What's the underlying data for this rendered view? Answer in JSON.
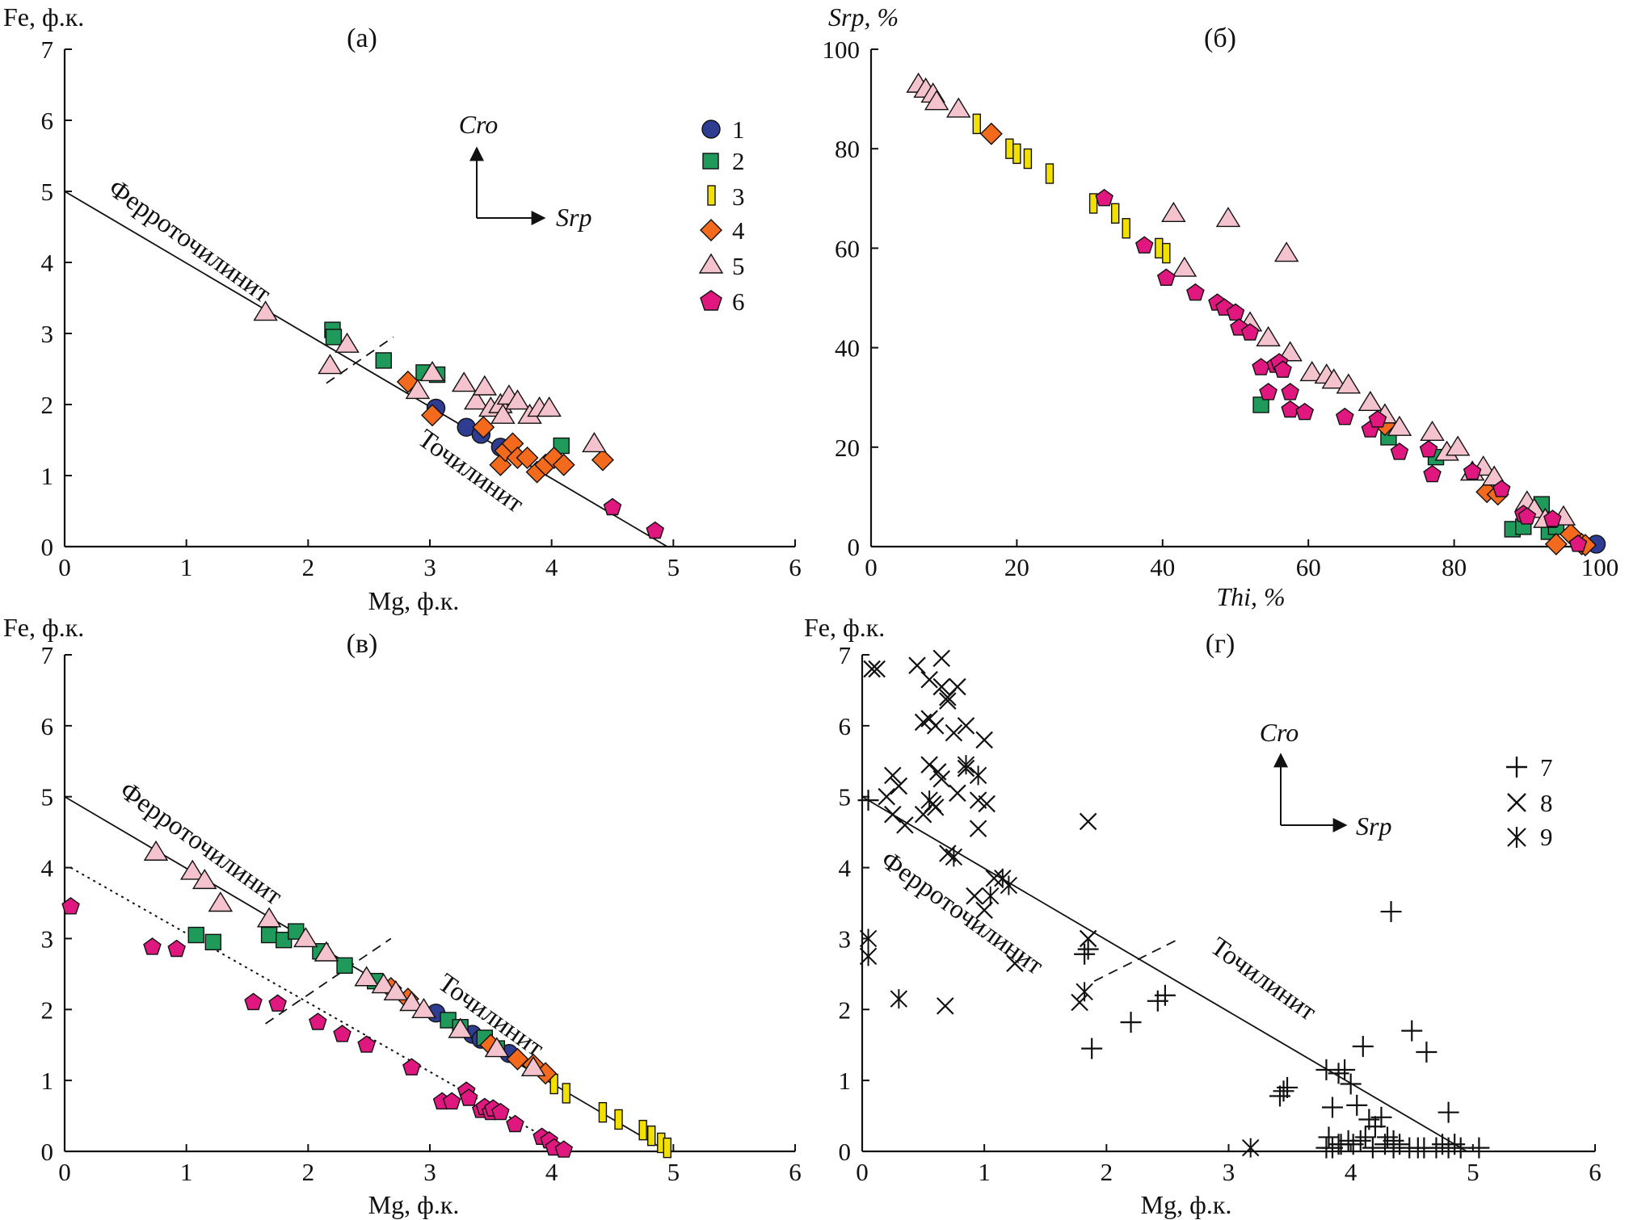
{
  "colors": {
    "1": "#2e3d92",
    "2": "#1f9a5a",
    "3": "#f2e100",
    "4": "#f36a1c",
    "5": "#f4c3cd",
    "6": "#e0177e",
    "axis": "#111111"
  },
  "icons": {
    "direction_arrows": "arrow-up-right-icon"
  },
  "chart_data": [
    {
      "id": "a",
      "type": "scatter",
      "panel_label": "(а)",
      "xlabel": "Mg, ф.к.",
      "ylabel": "Fe, ф.к.",
      "xlim": [
        0,
        6
      ],
      "ylim": [
        0,
        7
      ],
      "xticks": [
        "0",
        "1",
        "2",
        "3",
        "4",
        "5",
        "6"
      ],
      "yticks": [
        "0",
        "1",
        "2",
        "3",
        "4",
        "5",
        "6",
        "7"
      ],
      "grid": false,
      "legend": {
        "placement": "top-right",
        "items": [
          {
            "key": "1",
            "label": "1",
            "marker": "circle"
          },
          {
            "key": "2",
            "label": "2",
            "marker": "square"
          },
          {
            "key": "3",
            "label": "3",
            "marker": "bar"
          },
          {
            "key": "4",
            "label": "4",
            "marker": "diamond"
          },
          {
            "key": "5",
            "label": "5",
            "marker": "triangle"
          },
          {
            "key": "6",
            "label": "6",
            "marker": "pentagon"
          }
        ]
      },
      "arrow_labels": {
        "up": "Cro",
        "right": "Srp"
      },
      "region_labels": {
        "ferro": "Ферроточилинит",
        "toch": "Точилинит"
      },
      "lines": [
        {
          "style": "solid",
          "x": [
            0,
            4.95
          ],
          "y": [
            5,
            0
          ]
        },
        {
          "style": "dashed",
          "x": [
            2.15,
            2.7
          ],
          "y": [
            2.3,
            2.95
          ]
        }
      ],
      "series": [
        {
          "key": "1",
          "marker": "circle",
          "x": [
            3.05,
            3.3,
            3.42,
            3.58
          ],
          "y": [
            1.95,
            1.68,
            1.58,
            1.4
          ]
        },
        {
          "key": "2",
          "marker": "square",
          "x": [
            2.2,
            2.21,
            2.62,
            2.95,
            3.06,
            4.08
          ],
          "y": [
            3.05,
            2.95,
            2.62,
            2.45,
            2.42,
            1.42
          ]
        },
        {
          "key": "4",
          "marker": "diamond",
          "x": [
            2.82,
            3.02,
            3.44,
            3.58,
            3.62,
            3.68,
            3.72,
            3.8,
            3.88,
            3.95,
            4.02,
            4.1,
            4.42
          ],
          "y": [
            2.32,
            1.85,
            1.68,
            1.15,
            1.35,
            1.45,
            1.25,
            1.25,
            1.05,
            1.15,
            1.25,
            1.15,
            1.22
          ]
        },
        {
          "key": "5",
          "marker": "triangle",
          "x": [
            1.65,
            2.18,
            2.32,
            2.9,
            3.02,
            3.28,
            3.38,
            3.45,
            3.5,
            3.58,
            3.6,
            3.65,
            3.72,
            3.82,
            3.9,
            3.98,
            4.35
          ],
          "y": [
            3.3,
            2.55,
            2.85,
            2.2,
            2.45,
            2.3,
            2.05,
            2.25,
            1.95,
            2.0,
            1.85,
            2.12,
            2.05,
            1.85,
            1.95,
            1.95,
            1.45
          ]
        },
        {
          "key": "6",
          "marker": "pentagon",
          "x": [
            4.5,
            4.85
          ],
          "y": [
            0.55,
            0.22
          ]
        }
      ]
    },
    {
      "id": "b",
      "type": "scatter",
      "panel_label": "(б)",
      "xlabel": "Thi, %",
      "ylabel": "Srp, %",
      "xlim": [
        0,
        100
      ],
      "ylim": [
        0,
        100
      ],
      "xticks": [
        "0",
        "20",
        "40",
        "60",
        "80",
        "100"
      ],
      "yticks": [
        "0",
        "20",
        "40",
        "60",
        "80",
        "100"
      ],
      "grid": false,
      "series": [
        {
          "key": "1",
          "marker": "circle",
          "x": [
            99.5
          ],
          "y": [
            0.5
          ]
        },
        {
          "key": "2",
          "marker": "square",
          "x": [
            53.5,
            71,
            77.5,
            88,
            89.5,
            92,
            93,
            94
          ],
          "y": [
            28.5,
            22,
            18,
            3.5,
            4,
            8.5,
            3,
            4
          ]
        },
        {
          "key": "3",
          "marker": "bar",
          "x": [
            14.5,
            19,
            20,
            21.5,
            24.5,
            30.5,
            33.5,
            35,
            39.5,
            40.5
          ],
          "y": [
            85,
            80,
            79,
            78,
            75,
            69,
            67,
            64,
            60,
            59
          ]
        },
        {
          "key": "4",
          "marker": "diamond",
          "x": [
            16.5,
            70.5,
            84.5,
            86,
            94,
            96,
            97.5,
            98
          ],
          "y": [
            83,
            24.5,
            11,
            10.5,
            0.5,
            2.5,
            0.5,
            0.3
          ]
        },
        {
          "key": "5",
          "marker": "triangle",
          "x": [
            6.5,
            7.5,
            8.5,
            9,
            12,
            41.5,
            43,
            49,
            52,
            54.5,
            57.5,
            60.5,
            62.5,
            63.5,
            65.5,
            68.5,
            70.5,
            72.5,
            77,
            79,
            80.5,
            82.5,
            84,
            85.5,
            90,
            91,
            92.5,
            95,
            57
          ],
          "y": [
            93,
            92,
            91,
            89.5,
            88,
            67,
            56,
            66,
            45,
            42,
            39,
            35,
            34.5,
            33.5,
            32.5,
            29,
            26.5,
            24,
            23,
            19,
            20,
            15,
            16,
            14,
            9,
            7.5,
            5.5,
            6,
            59
          ]
        },
        {
          "key": "6",
          "marker": "pentagon",
          "x": [
            32,
            37.5,
            40.5,
            44.5,
            47.5,
            48.5,
            50,
            50.5,
            52,
            53.5,
            54.5,
            55.5,
            56,
            56.5,
            57.5,
            57.5,
            59.5,
            65,
            68.5,
            69.5,
            72.5,
            76.5,
            77,
            82.5,
            86.5,
            89.5,
            90,
            93.5,
            97
          ],
          "y": [
            70,
            60.5,
            54,
            51,
            49,
            48,
            47,
            44,
            43,
            36,
            31,
            36.5,
            37,
            35.5,
            27.5,
            31,
            27,
            26,
            23.5,
            25.5,
            19,
            19.5,
            14.5,
            15,
            11.5,
            6.5,
            6,
            5.5,
            0.5
          ]
        }
      ]
    },
    {
      "id": "v",
      "type": "scatter",
      "panel_label": "(в)",
      "xlabel": "Mg, ф.к.",
      "ylabel": "Fe, ф.к.",
      "xlim": [
        0,
        6
      ],
      "ylim": [
        0,
        7
      ],
      "xticks": [
        "0",
        "1",
        "2",
        "3",
        "4",
        "5",
        "6"
      ],
      "yticks": [
        "0",
        "1",
        "2",
        "3",
        "4",
        "5",
        "6",
        "7"
      ],
      "grid": false,
      "region_labels": {
        "ferro": "Ферроточилинит",
        "toch": "Точилинит"
      },
      "lines": [
        {
          "style": "solid",
          "x": [
            0,
            4.95
          ],
          "y": [
            5,
            0
          ]
        },
        {
          "style": "dotted",
          "x": [
            0.05,
            4.15
          ],
          "y": [
            4,
            0
          ]
        },
        {
          "style": "dashed",
          "x": [
            1.65,
            2.68
          ],
          "y": [
            1.8,
            3
          ]
        }
      ],
      "series": [
        {
          "key": "1",
          "marker": "circle",
          "x": [
            3.05,
            3.35,
            3.42,
            3.65
          ],
          "y": [
            1.95,
            1.65,
            1.58,
            1.38
          ]
        },
        {
          "key": "2",
          "marker": "square",
          "x": [
            1.08,
            1.22,
            1.68,
            1.8,
            1.9,
            2.1,
            2.3,
            2.55,
            3.15,
            3.25,
            3.45,
            3.55
          ],
          "y": [
            3.05,
            2.95,
            3.05,
            2.98,
            3.1,
            2.82,
            2.62,
            2.4,
            1.85,
            1.75,
            1.6,
            1.45
          ]
        },
        {
          "key": "3",
          "marker": "bar",
          "x": [
            4.02,
            4.12,
            4.42,
            4.55,
            4.75,
            4.82,
            4.9,
            4.95
          ],
          "y": [
            0.95,
            0.82,
            0.55,
            0.45,
            0.3,
            0.22,
            0.12,
            0.05
          ]
        },
        {
          "key": "4",
          "marker": "diamond",
          "x": [
            2.68,
            2.82,
            3.5,
            3.72,
            3.85,
            3.95
          ],
          "y": [
            2.3,
            2.15,
            1.5,
            1.3,
            1.22,
            1.1
          ]
        },
        {
          "key": "5",
          "marker": "triangle",
          "x": [
            0.75,
            1.05,
            1.15,
            1.28,
            1.68,
            1.98,
            2.15,
            2.48,
            2.62,
            2.72,
            2.85,
            2.95,
            3.25,
            3.55,
            3.85
          ],
          "y": [
            4.22,
            3.95,
            3.82,
            3.5,
            3.28,
            3.0,
            2.8,
            2.45,
            2.35,
            2.25,
            2.1,
            2.0,
            1.72,
            1.45,
            1.18
          ]
        },
        {
          "key": "6",
          "marker": "pentagon",
          "x": [
            0.05,
            0.72,
            0.92,
            1.55,
            1.75,
            2.08,
            2.28,
            2.48,
            2.85,
            3.1,
            3.18,
            3.3,
            3.32,
            3.42,
            3.45,
            3.5,
            3.52,
            3.58,
            3.7,
            3.92,
            3.98,
            4.02,
            4.1
          ],
          "y": [
            3.45,
            2.88,
            2.85,
            2.1,
            2.08,
            1.82,
            1.65,
            1.5,
            1.18,
            0.7,
            0.7,
            0.85,
            0.75,
            0.58,
            0.62,
            0.55,
            0.6,
            0.55,
            0.38,
            0.2,
            0.15,
            0.05,
            0.02
          ]
        }
      ]
    },
    {
      "id": "g",
      "type": "scatter",
      "panel_label": "(г)",
      "xlabel": "Mg, ф.к.",
      "ylabel": "Fe, ф.к.",
      "xlim": [
        0,
        6
      ],
      "ylim": [
        0,
        7
      ],
      "xticks": [
        "0",
        "1",
        "2",
        "3",
        "4",
        "5",
        "6"
      ],
      "yticks": [
        "0",
        "1",
        "2",
        "3",
        "4",
        "5",
        "6",
        "7"
      ],
      "grid": false,
      "legend": {
        "placement": "top-right",
        "items": [
          {
            "key": "7",
            "label": "7",
            "marker": "plus"
          },
          {
            "key": "8",
            "label": "8",
            "marker": "cross"
          },
          {
            "key": "9",
            "label": "9",
            "marker": "asterisk"
          }
        ]
      },
      "arrow_labels": {
        "up": "Cro",
        "right": "Srp"
      },
      "region_labels": {
        "ferro": "Ферроточилинит",
        "toch": "Точилинит"
      },
      "lines": [
        {
          "style": "solid",
          "x": [
            0,
            4.95
          ],
          "y": [
            5,
            0
          ]
        },
        {
          "style": "dashed",
          "x": [
            1.9,
            2.6
          ],
          "y": [
            2.4,
            3.0
          ]
        }
      ],
      "series": [
        {
          "key": "7",
          "marker": "plus",
          "x": [
            0.05,
            1.82,
            1.85,
            1.88,
            2.2,
            2.42,
            2.48,
            3.42,
            3.45,
            3.48,
            3.8,
            3.85,
            3.9,
            3.95,
            4.0,
            4.05,
            4.1,
            4.15,
            4.2,
            4.25,
            4.3,
            4.35,
            4.5,
            4.62,
            4.8,
            4.12,
            3.82,
            3.92,
            3.8,
            3.85,
            3.9,
            3.98,
            4.02,
            4.08,
            4.18,
            4.28,
            4.35,
            4.4,
            4.48,
            4.55,
            4.6,
            4.7,
            4.75,
            4.8,
            4.85,
            4.9,
            5.05,
            4.33
          ],
          "y": [
            4.95,
            2.78,
            2.85,
            1.45,
            1.82,
            2.12,
            2.2,
            0.78,
            0.85,
            0.9,
            1.15,
            0.62,
            1.1,
            1.15,
            0.95,
            0.65,
            1.48,
            0.45,
            0.35,
            0.48,
            0.2,
            0.15,
            1.7,
            1.4,
            0.55,
            0.2,
            0.2,
            0.1,
            0.05,
            0.05,
            0.1,
            0.15,
            0.1,
            0.15,
            0.05,
            0.1,
            0.05,
            0.1,
            0.05,
            0.05,
            0.05,
            0.05,
            0.1,
            0.05,
            0.1,
            0.05,
            0.05,
            3.38
          ]
        },
        {
          "key": "8",
          "marker": "cross",
          "x": [
            0.08,
            0.12,
            0.25,
            0.3,
            0.45,
            0.5,
            0.55,
            0.55,
            0.6,
            0.65,
            0.65,
            0.7,
            0.7,
            0.75,
            0.78,
            0.85,
            0.85,
            0.95,
            0.95,
            1.0,
            1.02,
            1.08,
            0.92,
            0.78,
            0.7,
            0.62,
            0.6,
            0.65,
            0.55,
            0.58,
            0.5,
            0.35,
            0.25,
            0.2,
            1.25,
            1.0,
            0.68,
            1.78,
            1.85,
            1.85
          ],
          "y": [
            6.8,
            6.8,
            5.3,
            5.15,
            6.85,
            6.05,
            6.1,
            6.65,
            6.0,
            6.95,
            6.55,
            6.35,
            6.4,
            5.9,
            6.55,
            6.0,
            5.4,
            4.95,
            4.55,
            5.8,
            4.9,
            3.85,
            3.6,
            5.05,
            4.2,
            5.35,
            4.85,
            5.25,
            5.45,
            4.9,
            4.75,
            4.6,
            4.75,
            5.0,
            2.65,
            3.4,
            2.05,
            2.1,
            3.0,
            4.65
          ]
        },
        {
          "key": "9",
          "marker": "asterisk",
          "x": [
            0.05,
            0.05,
            0.3,
            0.55,
            0.75,
            0.85,
            0.95,
            1.05,
            1.15,
            1.2,
            1.82,
            3.18
          ],
          "y": [
            3.0,
            2.75,
            2.15,
            4.95,
            4.15,
            5.45,
            5.3,
            3.6,
            3.85,
            3.75,
            2.25,
            0.05
          ]
        }
      ]
    }
  ]
}
